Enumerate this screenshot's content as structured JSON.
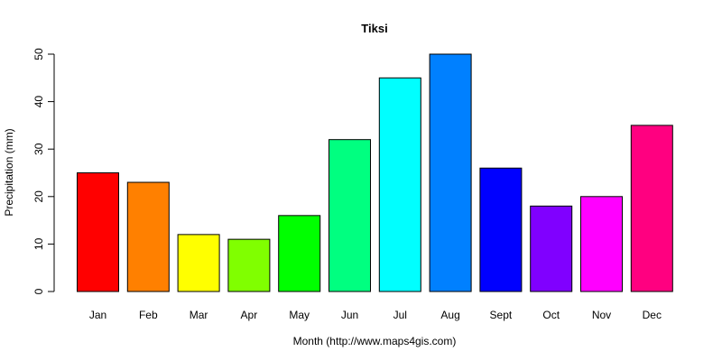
{
  "chart_data": {
    "type": "bar",
    "title": "Tiksi",
    "xlabel": "Month (http://www.maps4gis.com)",
    "ylabel": "Precipitation (mm)",
    "ylim": [
      0,
      50
    ],
    "yticks": [
      0,
      10,
      20,
      30,
      40,
      50
    ],
    "categories": [
      "Jan",
      "Feb",
      "Mar",
      "Apr",
      "May",
      "Jun",
      "Jul",
      "Aug",
      "Sept",
      "Oct",
      "Nov",
      "Dec"
    ],
    "values": [
      25,
      23,
      12,
      11,
      16,
      32,
      45,
      50,
      26,
      18,
      20,
      35
    ],
    "colors": [
      "#FF0000",
      "#FF8000",
      "#FFFF00",
      "#80FF00",
      "#00FF00",
      "#00FF80",
      "#00FFFF",
      "#0080FF",
      "#0000FF",
      "#8000FF",
      "#FF00FF",
      "#FF0080"
    ],
    "grid": false,
    "legend": "none"
  }
}
